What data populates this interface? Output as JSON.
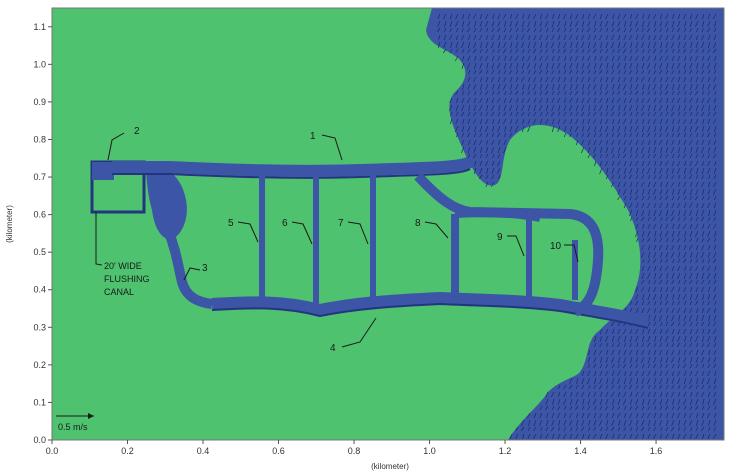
{
  "figure": {
    "x_axis": {
      "label": "(kilometer)",
      "ticks": [
        "0.0",
        "0.2",
        "0.4",
        "0.6",
        "0.8",
        "1.0",
        "1.2",
        "1.4",
        "1.6"
      ],
      "range_km": [
        0.0,
        1.78
      ]
    },
    "y_axis": {
      "label": "(kilometer)",
      "ticks": [
        "0.0",
        "0.1",
        "0.2",
        "0.3",
        "0.4",
        "0.5",
        "0.6",
        "0.7",
        "0.8",
        "0.9",
        "1.0",
        "1.1"
      ],
      "range_km": [
        0.0,
        1.15
      ]
    },
    "velocity_scale": {
      "label": "0.5 m/s",
      "value_m_per_s": 0.5
    },
    "annotation": {
      "lines": [
        "20' WIDE",
        "FLUSHING",
        "CANAL"
      ]
    },
    "callouts": [
      {
        "label": "1",
        "target": "main-canal-north"
      },
      {
        "label": "2",
        "target": "canal-head"
      },
      {
        "label": "3",
        "target": "canal-southwest-bend"
      },
      {
        "label": "4",
        "target": "main-canal-south"
      },
      {
        "label": "5",
        "target": "cross-canal-1"
      },
      {
        "label": "6",
        "target": "cross-canal-2"
      },
      {
        "label": "7",
        "target": "cross-canal-3"
      },
      {
        "label": "8",
        "target": "cross-canal-4"
      },
      {
        "label": "9",
        "target": "cross-canal-5"
      },
      {
        "label": "10",
        "target": "cross-canal-6"
      }
    ],
    "colors": {
      "land": "#4ec26e",
      "water": "#3d55a6",
      "canal_edge": "#233580",
      "vector": "#1b2a66",
      "frame": "#777777"
    }
  }
}
